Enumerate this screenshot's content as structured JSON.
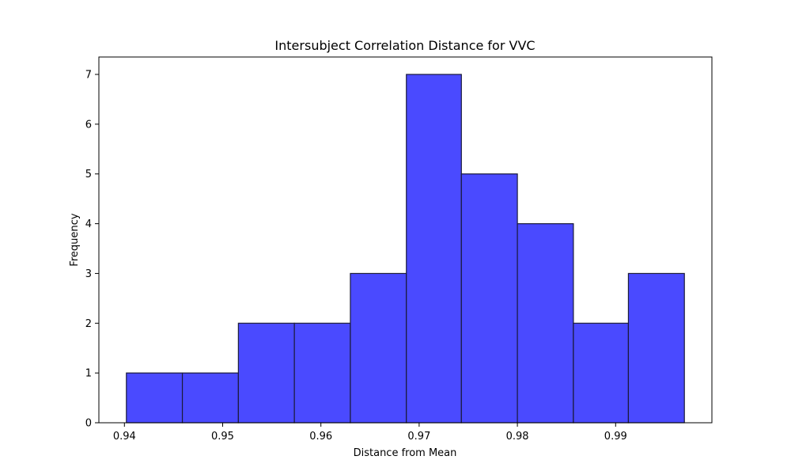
{
  "chart_data": {
    "type": "bar",
    "title": "Intersubject Correlation Distance for VVC",
    "xlabel": "Distance from Mean",
    "ylabel": "Frequency",
    "bin_edges": [
      0.9402,
      0.9459,
      0.9516,
      0.9573,
      0.963,
      0.9687,
      0.9743,
      0.98,
      0.9857,
      0.9913,
      0.997
    ],
    "values": [
      1,
      1,
      2,
      2,
      3,
      7,
      5,
      4,
      2,
      3
    ],
    "xlim": [
      0.9374,
      0.9998
    ],
    "ylim": [
      0,
      7.35
    ],
    "xticks": [
      {
        "value": 0.94,
        "label": "0.94"
      },
      {
        "value": 0.95,
        "label": "0.95"
      },
      {
        "value": 0.96,
        "label": "0.96"
      },
      {
        "value": 0.97,
        "label": "0.97"
      },
      {
        "value": 0.98,
        "label": "0.98"
      },
      {
        "value": 0.99,
        "label": "0.99"
      }
    ],
    "yticks": [
      {
        "value": 0,
        "label": "0"
      },
      {
        "value": 1,
        "label": "1"
      },
      {
        "value": 2,
        "label": "2"
      },
      {
        "value": 3,
        "label": "3"
      },
      {
        "value": 4,
        "label": "4"
      },
      {
        "value": 5,
        "label": "5"
      },
      {
        "value": 6,
        "label": "6"
      },
      {
        "value": 7,
        "label": "7"
      }
    ],
    "grid": false,
    "colors": {
      "bar_fill": "#4a4aff",
      "bar_edge": "#1a1a3a"
    }
  }
}
